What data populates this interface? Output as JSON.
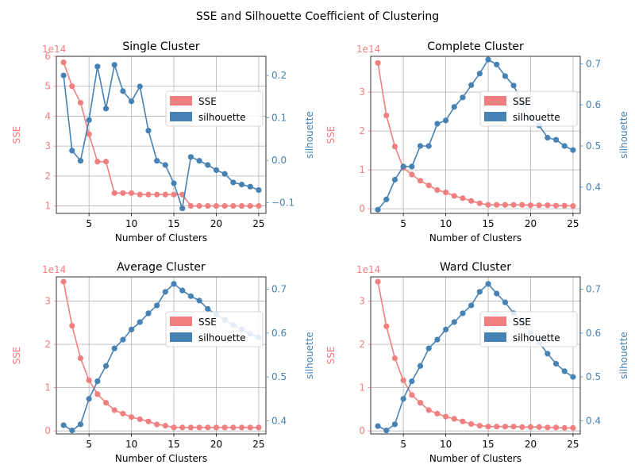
{
  "figure": {
    "suptitle": "SSE and Silhouette Coefficient of Clustering",
    "colors": {
      "sse": "#f08080",
      "silhouette": "#4682b4",
      "grid": "#b0b0b0"
    }
  },
  "chart_data": [
    {
      "type": "line",
      "title": "Single Cluster",
      "xlabel": "Number of Clusters",
      "ylabel": "SSE",
      "y2label": "silhouette",
      "offset_text": "1e14",
      "x": [
        2,
        3,
        4,
        5,
        6,
        7,
        8,
        9,
        10,
        11,
        12,
        13,
        14,
        15,
        16,
        17,
        18,
        19,
        20,
        21,
        22,
        23,
        24,
        25
      ],
      "xlim": [
        1.15,
        25.85
      ],
      "xticks": [
        5,
        10,
        15,
        20,
        25
      ],
      "ylim": [
        0.75,
        6.0
      ],
      "yticks": [
        1,
        2,
        3,
        4,
        5,
        6
      ],
      "y2lim": [
        -0.125,
        0.245
      ],
      "y2ticks": [
        -0.1,
        0.0,
        0.1,
        0.2
      ],
      "y2tick_labels": [
        "−0.1",
        "0.0",
        "0.1",
        "0.2"
      ],
      "grid": true,
      "legend_position": "center-right",
      "series": [
        {
          "name": "SSE",
          "axis": "left",
          "color": "#f08080",
          "values": [
            5.8,
            5.0,
            4.45,
            3.4,
            2.48,
            2.48,
            1.43,
            1.43,
            1.43,
            1.38,
            1.38,
            1.38,
            1.38,
            1.38,
            1.38,
            1.0,
            1.0,
            1.0,
            1.0,
            1.0,
            1.0,
            1.0,
            1.0,
            1.0
          ]
        },
        {
          "name": "silhouette",
          "axis": "right",
          "color": "#4682b4",
          "values": [
            0.2,
            0.023,
            -0.001,
            0.095,
            0.221,
            0.122,
            0.225,
            0.163,
            0.139,
            0.174,
            0.07,
            -0.001,
            -0.011,
            -0.054,
            -0.113,
            0.008,
            -0.001,
            -0.011,
            -0.023,
            -0.032,
            -0.052,
            -0.057,
            -0.062,
            -0.07
          ]
        }
      ]
    },
    {
      "type": "line",
      "title": "Complete Cluster",
      "xlabel": "Number of Clusters",
      "ylabel": "SSE",
      "y2label": "silhouette",
      "offset_text": "1e14",
      "x": [
        2,
        3,
        4,
        5,
        6,
        7,
        8,
        9,
        10,
        11,
        12,
        13,
        14,
        15,
        16,
        17,
        18,
        19,
        20,
        21,
        22,
        23,
        24,
        25
      ],
      "xlim": [
        1.15,
        25.85
      ],
      "xticks": [
        5,
        10,
        15,
        20,
        25
      ],
      "ylim": [
        -0.12,
        3.92
      ],
      "yticks": [
        0,
        1,
        2,
        3
      ],
      "y2lim": [
        0.336,
        0.718
      ],
      "y2ticks": [
        0.4,
        0.5,
        0.6,
        0.7
      ],
      "y2tick_labels": [
        "0.4",
        "0.5",
        "0.6",
        "0.7"
      ],
      "grid": true,
      "legend_position": "center-right",
      "series": [
        {
          "name": "SSE",
          "axis": "left",
          "color": "#f08080",
          "values": [
            3.75,
            2.4,
            1.6,
            1.05,
            0.88,
            0.72,
            0.6,
            0.48,
            0.42,
            0.33,
            0.27,
            0.2,
            0.14,
            0.1,
            0.1,
            0.1,
            0.1,
            0.1,
            0.09,
            0.09,
            0.09,
            0.08,
            0.08,
            0.07
          ]
        },
        {
          "name": "silhouette",
          "axis": "right",
          "color": "#4682b4",
          "values": [
            0.345,
            0.37,
            0.418,
            0.45,
            0.45,
            0.5,
            0.5,
            0.554,
            0.562,
            0.595,
            0.618,
            0.648,
            0.676,
            0.71,
            0.698,
            0.67,
            0.647,
            0.605,
            0.568,
            0.55,
            0.52,
            0.515,
            0.5,
            0.49
          ]
        }
      ]
    },
    {
      "type": "line",
      "title": "Average Cluster",
      "xlabel": "Number of Clusters",
      "ylabel": "SSE",
      "y2label": "silhouette",
      "offset_text": "1e14",
      "x": [
        2,
        3,
        4,
        5,
        6,
        7,
        8,
        9,
        10,
        11,
        12,
        13,
        14,
        15,
        16,
        17,
        18,
        19,
        20,
        21,
        22,
        23,
        24,
        25
      ],
      "xlim": [
        1.15,
        25.85
      ],
      "xticks": [
        5,
        10,
        15,
        20,
        25
      ],
      "ylim": [
        -0.07,
        3.56
      ],
      "yticks": [
        0,
        1,
        2,
        3
      ],
      "y2lim": [
        0.37,
        0.728
      ],
      "y2ticks": [
        0.4,
        0.5,
        0.6,
        0.7
      ],
      "y2tick_labels": [
        "0.4",
        "0.5",
        "0.6",
        "0.7"
      ],
      "grid": true,
      "legend_position": "center-right",
      "series": [
        {
          "name": "SSE",
          "axis": "left",
          "color": "#f08080",
          "values": [
            3.45,
            2.43,
            1.68,
            1.17,
            0.85,
            0.65,
            0.48,
            0.4,
            0.32,
            0.27,
            0.22,
            0.15,
            0.12,
            0.08,
            0.08,
            0.08,
            0.08,
            0.08,
            0.08,
            0.08,
            0.08,
            0.08,
            0.08,
            0.08
          ]
        },
        {
          "name": "silhouette",
          "axis": "right",
          "color": "#4682b4",
          "values": [
            0.39,
            0.378,
            0.392,
            0.45,
            0.49,
            0.525,
            0.565,
            0.585,
            0.608,
            0.625,
            0.645,
            0.663,
            0.694,
            0.712,
            0.697,
            0.684,
            0.674,
            0.655,
            0.642,
            0.63,
            0.618,
            0.608,
            0.598,
            0.59
          ]
        }
      ]
    },
    {
      "type": "line",
      "title": "Ward Cluster",
      "xlabel": "Number of Clusters",
      "ylabel": "SSE",
      "y2label": "silhouette",
      "offset_text": "1e14",
      "x": [
        2,
        3,
        4,
        5,
        6,
        7,
        8,
        9,
        10,
        11,
        12,
        13,
        14,
        15,
        16,
        17,
        18,
        19,
        20,
        21,
        22,
        23,
        24,
        25
      ],
      "xlim": [
        1.15,
        25.85
      ],
      "xticks": [
        5,
        10,
        15,
        20,
        25
      ],
      "ylim": [
        -0.07,
        3.56
      ],
      "yticks": [
        0,
        1,
        2,
        3
      ],
      "y2lim": [
        0.37,
        0.728
      ],
      "y2ticks": [
        0.4,
        0.5,
        0.6,
        0.7
      ],
      "y2tick_labels": [
        "0.4",
        "0.5",
        "0.6",
        "0.7"
      ],
      "grid": true,
      "legend_position": "center-right",
      "series": [
        {
          "name": "SSE",
          "axis": "left",
          "color": "#f08080",
          "values": [
            3.45,
            2.42,
            1.68,
            1.17,
            0.83,
            0.65,
            0.48,
            0.4,
            0.33,
            0.28,
            0.22,
            0.16,
            0.12,
            0.1,
            0.1,
            0.1,
            0.1,
            0.09,
            0.09,
            0.09,
            0.08,
            0.08,
            0.07,
            0.07
          ]
        },
        {
          "name": "silhouette",
          "axis": "right",
          "color": "#4682b4",
          "values": [
            0.388,
            0.378,
            0.392,
            0.45,
            0.49,
            0.525,
            0.565,
            0.585,
            0.608,
            0.625,
            0.645,
            0.663,
            0.694,
            0.712,
            0.69,
            0.67,
            0.645,
            0.625,
            0.6,
            0.578,
            0.553,
            0.53,
            0.513,
            0.5
          ]
        }
      ]
    }
  ]
}
